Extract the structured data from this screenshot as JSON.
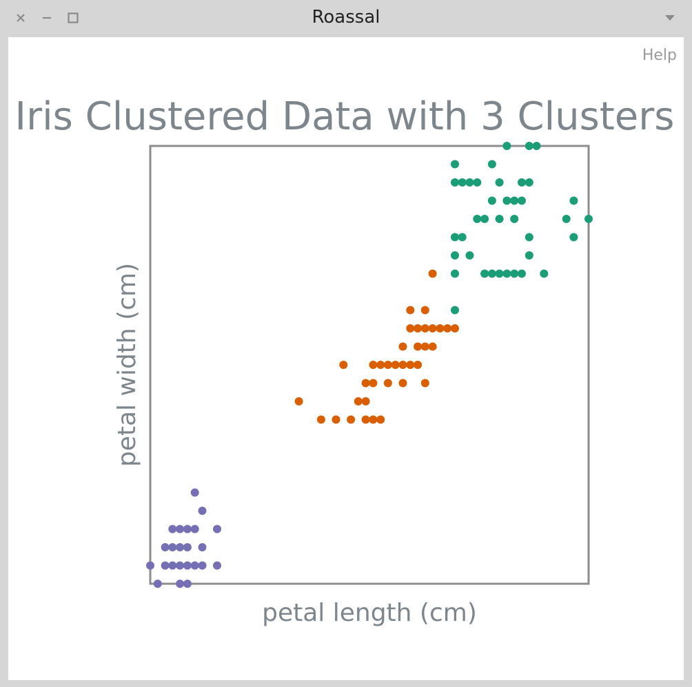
{
  "window": {
    "title": "Roassal",
    "help_label": "Help"
  },
  "icons": {
    "close": "close-icon",
    "minimize": "minimize-icon",
    "maximize": "maximize-icon",
    "menu": "chevron-down-icon"
  },
  "colors": {
    "cluster_0": "#7570b3",
    "cluster_1": "#d95f02",
    "cluster_2": "#1b9e77",
    "text": "#7d868c",
    "frame": "#8c8c8c"
  },
  "chart_data": {
    "type": "scatter",
    "title": "Iris Clustered Data with 3 Clusters",
    "xlabel": "petal length (cm)",
    "ylabel": "petal width (cm)",
    "xlim": [
      1,
      6.9
    ],
    "ylim": [
      0.1,
      2.5
    ],
    "grid": false,
    "ticks": false,
    "series": [
      {
        "color": "#7570b3",
        "points": [
          [
            1.0,
            0.2
          ],
          [
            1.1,
            0.1
          ],
          [
            1.2,
            0.2
          ],
          [
            1.3,
            0.2
          ],
          [
            1.3,
            0.3
          ],
          [
            1.3,
            0.4
          ],
          [
            1.4,
            0.2
          ],
          [
            1.4,
            0.3
          ],
          [
            1.4,
            0.4
          ],
          [
            1.5,
            0.1
          ],
          [
            1.5,
            0.2
          ],
          [
            1.5,
            0.4
          ],
          [
            1.6,
            0.2
          ],
          [
            1.6,
            0.4
          ],
          [
            1.6,
            0.6
          ],
          [
            1.7,
            0.2
          ],
          [
            1.7,
            0.3
          ],
          [
            1.7,
            0.5
          ],
          [
            1.9,
            0.2
          ],
          [
            1.9,
            0.4
          ],
          [
            1.4,
            0.1
          ],
          [
            1.5,
            0.3
          ],
          [
            1.2,
            0.3
          ]
        ]
      },
      {
        "color": "#d95f02",
        "points": [
          [
            3.0,
            1.1
          ],
          [
            3.3,
            1.0
          ],
          [
            3.5,
            1.0
          ],
          [
            3.7,
            1.0
          ],
          [
            3.8,
            1.1
          ],
          [
            3.9,
            1.1
          ],
          [
            3.9,
            1.0
          ],
          [
            3.9,
            1.2
          ],
          [
            4.0,
            1.0
          ],
          [
            4.0,
            1.2
          ],
          [
            4.0,
            1.3
          ],
          [
            4.1,
            1.0
          ],
          [
            4.1,
            1.3
          ],
          [
            4.2,
            1.2
          ],
          [
            4.2,
            1.3
          ],
          [
            4.3,
            1.3
          ],
          [
            4.4,
            1.2
          ],
          [
            4.4,
            1.3
          ],
          [
            4.4,
            1.4
          ],
          [
            4.5,
            1.3
          ],
          [
            4.5,
            1.5
          ],
          [
            4.6,
            1.3
          ],
          [
            4.6,
            1.4
          ],
          [
            4.6,
            1.5
          ],
          [
            4.7,
            1.2
          ],
          [
            4.7,
            1.4
          ],
          [
            4.7,
            1.5
          ],
          [
            4.7,
            1.6
          ],
          [
            4.8,
            1.4
          ],
          [
            4.8,
            1.5
          ],
          [
            4.8,
            1.8
          ],
          [
            4.9,
            1.5
          ],
          [
            5.0,
            1.5
          ],
          [
            5.1,
            1.5
          ],
          [
            3.6,
            1.3
          ],
          [
            4.5,
            1.6
          ]
        ]
      },
      {
        "color": "#1b9e77",
        "points": [
          [
            5.1,
            1.6
          ],
          [
            5.1,
            1.8
          ],
          [
            5.1,
            1.9
          ],
          [
            5.1,
            2.0
          ],
          [
            5.1,
            2.3
          ],
          [
            5.1,
            2.4
          ],
          [
            5.2,
            2.0
          ],
          [
            5.2,
            2.3
          ],
          [
            5.3,
            1.9
          ],
          [
            5.3,
            2.3
          ],
          [
            5.4,
            2.1
          ],
          [
            5.4,
            2.3
          ],
          [
            5.5,
            1.8
          ],
          [
            5.5,
            2.1
          ],
          [
            5.6,
            1.8
          ],
          [
            5.6,
            2.2
          ],
          [
            5.6,
            2.4
          ],
          [
            5.7,
            1.8
          ],
          [
            5.7,
            2.1
          ],
          [
            5.7,
            2.3
          ],
          [
            5.8,
            1.8
          ],
          [
            5.8,
            2.2
          ],
          [
            5.8,
            2.5
          ],
          [
            5.9,
            1.8
          ],
          [
            5.9,
            2.1
          ],
          [
            5.9,
            2.2
          ],
          [
            6.0,
            1.8
          ],
          [
            6.0,
            2.2
          ],
          [
            6.0,
            2.3
          ],
          [
            6.1,
            1.9
          ],
          [
            6.1,
            2.0
          ],
          [
            6.1,
            2.3
          ],
          [
            6.1,
            2.5
          ],
          [
            6.2,
            2.5
          ],
          [
            6.3,
            1.8
          ],
          [
            6.6,
            2.1
          ],
          [
            6.7,
            2.0
          ],
          [
            6.7,
            2.2
          ],
          [
            6.9,
            2.1
          ]
        ]
      }
    ]
  }
}
